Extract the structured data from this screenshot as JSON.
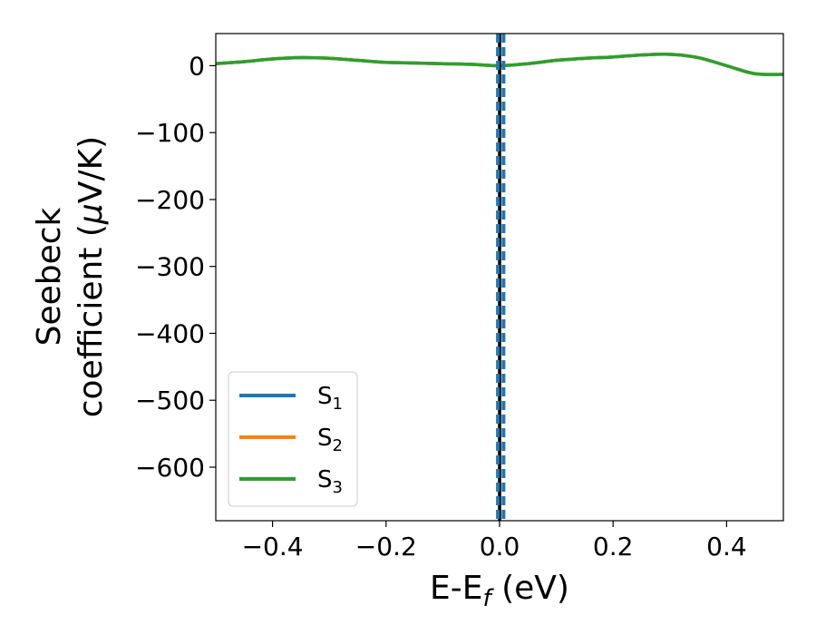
{
  "chart_data": {
    "type": "line",
    "xlabel": {
      "main": "E-E",
      "sub": "f",
      "unit": " (eV)"
    },
    "ylabel": {
      "line1": "Seebeck",
      "line2": "coefficient  (",
      "mu": "μ",
      "unit": "V/K)"
    },
    "xlim": [
      -0.5,
      0.5
    ],
    "ylim": [
      -680,
      48
    ],
    "xticks": [
      -0.4,
      -0.2,
      0.0,
      0.2,
      0.4
    ],
    "xtick_labels": [
      "−0.4",
      "−0.2",
      "0.0",
      "0.2",
      "0.4"
    ],
    "yticks": [
      0,
      -100,
      -200,
      -300,
      -400,
      -500,
      -600
    ],
    "ytick_labels": [
      "0",
      "−100",
      "−200",
      "−300",
      "−400",
      "−500",
      "−600"
    ],
    "grid": false,
    "legend_position": "lower-left",
    "series": [
      {
        "name": "S",
        "sub": "1",
        "color": "#1f77b4",
        "x": [
          -0.5,
          -0.45,
          -0.4,
          -0.35,
          -0.3,
          -0.25,
          -0.2,
          -0.15,
          -0.1,
          -0.05,
          0.0,
          0.05,
          0.1,
          0.15,
          0.2,
          0.25,
          0.3,
          0.35,
          0.4,
          0.45,
          0.5
        ],
        "y": [
          3,
          6,
          10,
          12,
          11,
          8,
          5,
          4,
          3,
          2,
          0,
          3,
          8,
          11,
          13,
          16,
          17,
          12,
          0,
          -12,
          -13
        ]
      },
      {
        "name": "S",
        "sub": "2",
        "color": "#ff7f0e",
        "x": [
          -0.5,
          -0.45,
          -0.4,
          -0.35,
          -0.3,
          -0.25,
          -0.2,
          -0.15,
          -0.1,
          -0.05,
          0.0,
          0.05,
          0.1,
          0.15,
          0.2,
          0.25,
          0.3,
          0.35,
          0.4,
          0.45,
          0.5
        ],
        "y": [
          3,
          6,
          10,
          12,
          11,
          8,
          5,
          4,
          3,
          2,
          0,
          3,
          8,
          11,
          13,
          16,
          17,
          12,
          0,
          -12,
          -13
        ]
      },
      {
        "name": "S",
        "sub": "3",
        "color": "#2ca02c",
        "x": [
          -0.5,
          -0.45,
          -0.4,
          -0.35,
          -0.3,
          -0.25,
          -0.2,
          -0.15,
          -0.1,
          -0.05,
          0.0,
          0.05,
          0.1,
          0.15,
          0.2,
          0.25,
          0.3,
          0.35,
          0.4,
          0.45,
          0.5
        ],
        "y": [
          3,
          6,
          10,
          12,
          11,
          8,
          5,
          4,
          3,
          2,
          0,
          3,
          8,
          11,
          13,
          16,
          17,
          12,
          0,
          -12,
          -13
        ]
      }
    ],
    "vlines": [
      {
        "x": 0.0,
        "color": "#000000",
        "style": "solid"
      },
      {
        "x": -0.003,
        "color": "#1f77b4",
        "style": "dashed"
      },
      {
        "x": 0.007,
        "color": "#1f77b4",
        "style": "dashed"
      }
    ]
  }
}
